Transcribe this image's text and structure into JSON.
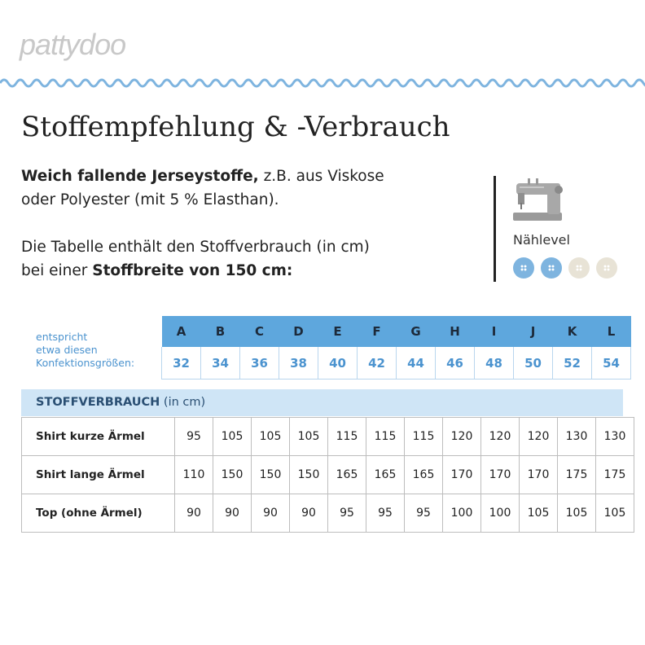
{
  "brand": "pattydoo",
  "title": "Stoffempfehlung & -Verbrauch",
  "intro": {
    "bold1": "Weich fallende Jerseystoffe,",
    "text1": " z.B. aus Viskose",
    "line2": "oder Polyester (mit 5 % Elasthan).",
    "line3": "Die Tabelle enthält den Stoffverbrauch (in cm)",
    "text4": "bei einer ",
    "bold4": "Stoffbreite von 150 cm:"
  },
  "sewing_level": {
    "label": "Nählevel",
    "icon": "sewing-machine-icon",
    "level": 2,
    "max": 4,
    "active_color": "#7eb4df",
    "inactive_color": "#e8e3d6"
  },
  "size_chart": {
    "caption": [
      "entspricht",
      "etwa diesen",
      "Konfektionsgrößen:"
    ],
    "letters": [
      "A",
      "B",
      "C",
      "D",
      "E",
      "F",
      "G",
      "H",
      "I",
      "J",
      "K",
      "L"
    ],
    "sizes": [
      "32",
      "34",
      "36",
      "38",
      "40",
      "42",
      "44",
      "46",
      "48",
      "50",
      "52",
      "54"
    ]
  },
  "usage": {
    "header_bold": "STOFFVERBRAUCH",
    "header_unit": " (in cm)",
    "rows": [
      {
        "label": "Shirt kurze Ärmel",
        "values": [
          "95",
          "105",
          "105",
          "105",
          "115",
          "115",
          "115",
          "120",
          "120",
          "120",
          "130",
          "130"
        ]
      },
      {
        "label": "Shirt lange Ärmel",
        "values": [
          "110",
          "150",
          "150",
          "150",
          "165",
          "165",
          "165",
          "170",
          "170",
          "170",
          "175",
          "175"
        ]
      },
      {
        "label": "Top (ohne Ärmel)",
        "values": [
          "90",
          "90",
          "90",
          "90",
          "95",
          "95",
          "95",
          "100",
          "100",
          "105",
          "105",
          "105"
        ]
      }
    ]
  },
  "colors": {
    "accent": "#5ea7dd",
    "accent_text": "#4b93cf",
    "header_bg": "#cfe5f6",
    "wave": "#7eb4df"
  }
}
